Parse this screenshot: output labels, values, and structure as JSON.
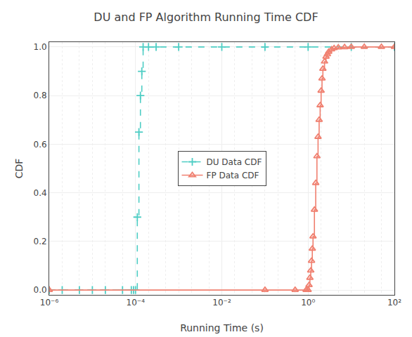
{
  "chart_data": {
    "type": "line",
    "title": "DU and FP Algorithm Running Time CDF",
    "xlabel": "Running Time (s)",
    "ylabel": "CDF",
    "log": "x",
    "grid": true,
    "legend": "center",
    "xlim": [
      1e-06,
      100.0
    ],
    "ylim": [
      -0.02,
      1.02
    ],
    "xticks": [
      {
        "value": 1e-06,
        "label": "10⁻⁶"
      },
      {
        "value": 0.0001,
        "label": "10⁻⁴"
      },
      {
        "value": 0.01,
        "label": "10⁻²"
      },
      {
        "value": 1.0,
        "label": "10⁰"
      },
      {
        "value": 100.0,
        "label": "10²"
      }
    ],
    "yticks": [
      {
        "value": 0,
        "label": "0.0"
      },
      0.2,
      0.4,
      0.6,
      0.8,
      {
        "value": 1.0,
        "label": "1.0"
      }
    ],
    "series": [
      {
        "name": "DU Data CDF",
        "color": "#4ECDC4",
        "marker": "plus",
        "line_style": "dashed",
        "x": [
          1e-06,
          2e-06,
          5e-06,
          1e-05,
          2e-05,
          5e-05,
          8e-05,
          9e-05,
          0.0001,
          0.00011,
          0.00012,
          0.00013,
          0.00014,
          0.00015,
          0.0002,
          0.0003,
          0.001,
          0.01,
          0.1,
          1.0,
          10.0,
          100.0
        ],
        "values": [
          0.0,
          0.0,
          0.0,
          0.0,
          0.0,
          0.0,
          0.0,
          0.0,
          0.0,
          0.3,
          0.65,
          0.8,
          0.9,
          1.0,
          1.0,
          1.0,
          1.0,
          1.0,
          1.0,
          1.0,
          1.0,
          1.0
        ]
      },
      {
        "name": "FP Data CDF",
        "color": "#F08070",
        "marker": "triangle-open",
        "line_style": "solid",
        "x": [
          1e-06,
          0.1,
          0.5,
          0.9,
          1.0,
          1.05,
          1.1,
          1.15,
          1.2,
          1.25,
          1.3,
          1.4,
          1.5,
          1.6,
          1.7,
          1.8,
          1.9,
          2.0,
          2.1,
          2.2,
          2.4,
          2.6,
          2.8,
          3.0,
          3.5,
          4.0,
          5.0,
          7.0,
          10.0,
          20.0,
          50.0,
          100.0
        ],
        "values": [
          0.0,
          0.0,
          0.0,
          0.0,
          0.0,
          0.02,
          0.05,
          0.08,
          0.12,
          0.17,
          0.22,
          0.33,
          0.44,
          0.55,
          0.63,
          0.7,
          0.76,
          0.82,
          0.87,
          0.91,
          0.94,
          0.96,
          0.97,
          0.98,
          0.99,
          0.995,
          0.998,
          0.999,
          1.0,
          1.0,
          1.0,
          1.0
        ]
      }
    ]
  }
}
